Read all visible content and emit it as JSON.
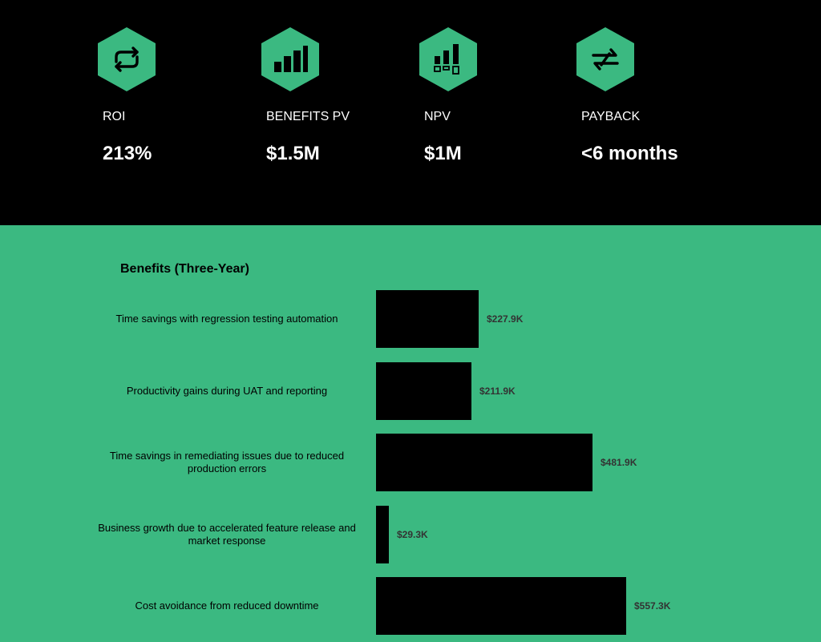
{
  "metrics": [
    {
      "label": "ROI",
      "value": "213%",
      "icon": "refresh-arrows-icon"
    },
    {
      "label": "BENEFITS PV",
      "value": "$1.5M",
      "icon": "bar-chart-icon"
    },
    {
      "label": "NPV",
      "value": "$1M",
      "icon": "bar-chart-boxes-icon"
    },
    {
      "label": "PAYBACK",
      "value": "<6 months",
      "icon": "swap-arrows-icon"
    }
  ],
  "colors": {
    "accent": "#3bb981",
    "dark": "#000000",
    "value_text": "#333333"
  },
  "chart_data": {
    "type": "bar",
    "orientation": "horizontal",
    "title": "Benefits (Three-Year)",
    "categories": [
      "Time savings with regression testing automation",
      "Productivity gains during UAT and reporting",
      "Time savings in remediating issues due to reduced production errors",
      "Business growth due to accelerated feature release and market response",
      "Cost avoidance from reduced downtime"
    ],
    "values": [
      227.9,
      211.9,
      481.9,
      29.3,
      557.3
    ],
    "value_labels": [
      "$227.9K",
      "$211.9K",
      "$481.9K",
      "$29.3K",
      "$557.3K"
    ],
    "unit": "K USD",
    "xlim": [
      0,
      557.3
    ]
  }
}
